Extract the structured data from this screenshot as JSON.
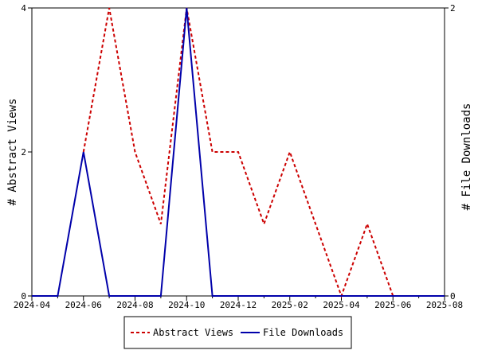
{
  "chart_data": {
    "type": "line",
    "x": [
      "2024-04",
      "2024-05",
      "2024-06",
      "2024-07",
      "2024-08",
      "2024-09",
      "2024-10",
      "2024-11",
      "2024-12",
      "2025-01",
      "2025-02",
      "2025-03",
      "2025-04",
      "2025-05",
      "2025-06",
      "2025-07",
      "2025-08"
    ],
    "x_tick_labels": [
      "2024-04",
      "2024-06",
      "2024-08",
      "2024-10",
      "2024-12",
      "2025-02",
      "2025-04",
      "2025-06",
      "2025-08"
    ],
    "series": [
      {
        "name": "Abstract Views",
        "axis": "left",
        "color": "#cc0000",
        "dash": "dashed",
        "values": [
          null,
          null,
          2,
          4,
          2,
          1,
          4,
          2,
          2,
          1,
          2,
          1,
          0,
          1,
          0,
          null,
          null
        ]
      },
      {
        "name": "File Downloads",
        "axis": "right",
        "color": "#0000aa",
        "dash": "solid",
        "values": [
          0,
          0,
          1,
          0,
          0,
          0,
          2,
          0,
          0,
          0,
          0,
          0,
          0,
          0,
          0,
          0,
          0
        ]
      }
    ],
    "ylabel_left": "# Abstract Views",
    "ylabel_right": "# File Downloads",
    "ylim_left": [
      0,
      4
    ],
    "ylim_right": [
      0,
      2
    ],
    "yticks_left": [
      "0",
      "2",
      "4"
    ],
    "yticks_right": [
      "0",
      "2"
    ],
    "legend_position": "bottom",
    "grid": false
  }
}
